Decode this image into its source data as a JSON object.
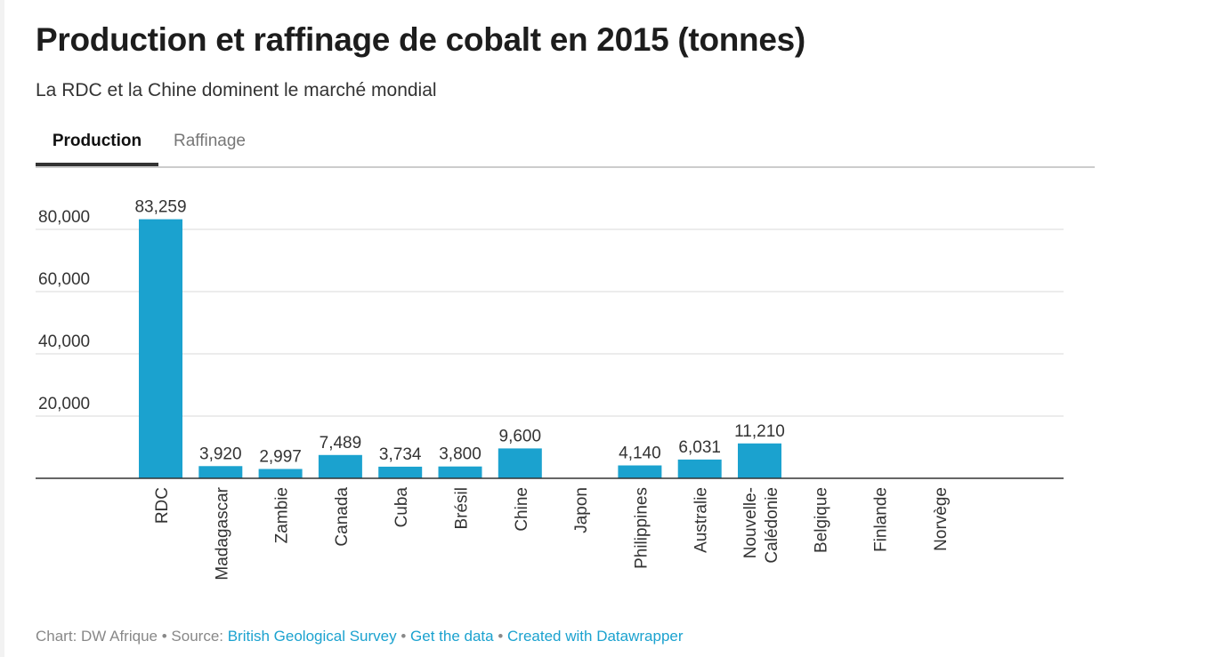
{
  "title": "Production et raffinage de cobalt en 2015 (tonnes)",
  "subtitle": "La RDC et la Chine dominent le marché mondial",
  "tabs": [
    {
      "label": "Production",
      "active": true
    },
    {
      "label": "Raffinage",
      "active": false
    }
  ],
  "colors": {
    "bar": "#1ba2cf",
    "grid": "#d9d9d9",
    "axis": "#333333",
    "link": "#1ba2cf"
  },
  "footer": {
    "chart_label": "Chart: DW Afrique",
    "sep1": " • ",
    "source_label": "Source: ",
    "source_link": "British Geological Survey",
    "sep2": " • ",
    "data_link": "Get the data",
    "sep3": " • ",
    "created_link": "Created with Datawrapper"
  },
  "chart_data": {
    "type": "bar",
    "title": "Production et raffinage de cobalt en 2015 (tonnes)",
    "subtitle": "La RDC et la Chine dominent le marché mondial",
    "xlabel": "",
    "ylabel": "",
    "ylim": [
      0,
      80000
    ],
    "yticks": [
      20000,
      40000,
      60000,
      80000
    ],
    "ytick_labels": [
      "20,000",
      "40,000",
      "60,000",
      "80,000"
    ],
    "grid": true,
    "categories": [
      "RDC",
      "Madagascar",
      "Zambie",
      "Canada",
      "Cuba",
      "Brésil",
      "Chine",
      "Japon",
      "Philippines",
      "Australie",
      "Nouvelle-Calédonie",
      "Belgique",
      "Finlande",
      "Norvège"
    ],
    "category_label_lines": [
      [
        "RDC"
      ],
      [
        "Madagascar"
      ],
      [
        "Zambie"
      ],
      [
        "Canada"
      ],
      [
        "Cuba"
      ],
      [
        "Brésil"
      ],
      [
        "Chine"
      ],
      [
        "Japon"
      ],
      [
        "Philippines"
      ],
      [
        "Australie"
      ],
      [
        "Nouvelle-",
        "Calédonie"
      ],
      [
        "Belgique"
      ],
      [
        "Finlande"
      ],
      [
        "Norvège"
      ]
    ],
    "values": [
      83259,
      3920,
      2997,
      7489,
      3734,
      3800,
      9600,
      null,
      4140,
      6031,
      11210,
      null,
      null,
      null
    ],
    "value_labels": [
      "83,259",
      "3,920",
      "2,997",
      "7,489",
      "3,734",
      "3,800",
      "9,600",
      "",
      "4,140",
      "6,031",
      "11,210",
      "",
      "",
      ""
    ]
  }
}
